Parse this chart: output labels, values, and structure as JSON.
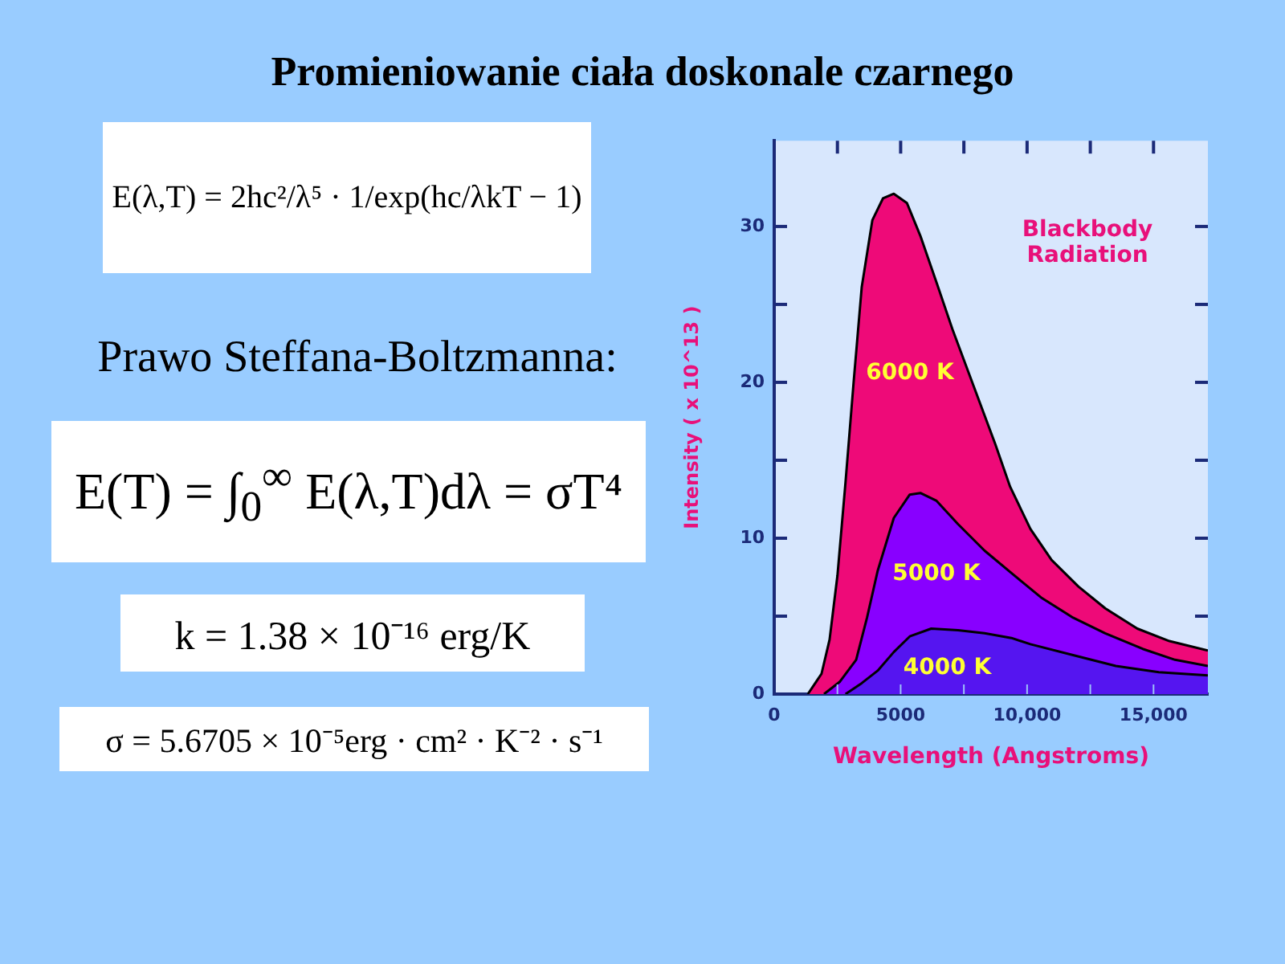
{
  "chart_data": {
    "type": "area",
    "title": "Promieniowanie ciała doskonale czarnego",
    "subtitle": "Blackbody Radiation",
    "xlabel": "Wavelength (Angstroms)",
    "ylabel": "Intensity ( x 10^13 )",
    "xlim": [
      0,
      17150
    ],
    "ylim": [
      0,
      35.5
    ],
    "xticks": [
      0,
      {
        "value": 2500,
        "label": null
      },
      5000,
      {
        "value": 7500,
        "label": null
      },
      {
        "value": 10000,
        "label": "10,000"
      },
      {
        "value": 12500,
        "label": null
      },
      {
        "value": 15000,
        "label": "15,000"
      }
    ],
    "yticks": [
      0,
      {
        "value": 5,
        "label": null
      },
      10,
      {
        "value": 15,
        "label": null
      },
      20,
      {
        "value": 25,
        "label": null
      },
      30
    ],
    "series": [
      {
        "name": "6000 K",
        "color": "#ee0a78",
        "x": [
          1330,
          1870,
          2190,
          2500,
          2820,
          3140,
          3460,
          3880,
          4300,
          4730,
          5250,
          5780,
          6420,
          7050,
          7900,
          8750,
          9330,
          10130,
          10970,
          12030,
          13090,
          14360,
          15630,
          17150
        ],
        "values": [
          0,
          1.3,
          3.5,
          7.6,
          13.6,
          20.0,
          26.1,
          30.4,
          31.8,
          32.1,
          31.5,
          29.4,
          26.4,
          23.4,
          19.7,
          16.0,
          13.3,
          10.6,
          8.6,
          6.9,
          5.5,
          4.2,
          3.4,
          2.8
        ]
      },
      {
        "name": "5000 K",
        "color": "#8800ff",
        "x": [
          1970,
          2600,
          3240,
          3670,
          4090,
          4730,
          5360,
          5780,
          6420,
          7270,
          8320,
          9430,
          10550,
          11820,
          13090,
          14570,
          15850,
          17150
        ],
        "values": [
          0,
          0.8,
          2.2,
          4.9,
          7.9,
          11.3,
          12.8,
          12.9,
          12.4,
          10.9,
          9.2,
          7.7,
          6.2,
          4.9,
          3.9,
          2.9,
          2.2,
          1.8
        ]
      },
      {
        "name": "4000 K",
        "color": "#5515f0",
        "x": [
          2820,
          3460,
          4090,
          4730,
          5360,
          6210,
          7270,
          8320,
          9380,
          10130,
          11820,
          13510,
          15210,
          17150
        ],
        "values": [
          0,
          0.7,
          1.5,
          2.7,
          3.7,
          4.2,
          4.1,
          3.9,
          3.6,
          3.2,
          2.5,
          1.8,
          1.4,
          1.2
        ]
      }
    ],
    "annotations": [
      "E(λ,T) = 2hc²/λ⁵ · 1/exp(hc/λkT − 1)",
      "Prawo Steffana-Boltzmanna:",
      "E(T) = ∫$_{0}$$^{∞}$ E(λ,T)dλ = σT⁴",
      "k = 1.38 × 10⁻¹⁶ erg/K",
      "σ = 5.6705 × 10⁻⁵erg · cm² · K⁻² · s⁻¹"
    ]
  }
}
